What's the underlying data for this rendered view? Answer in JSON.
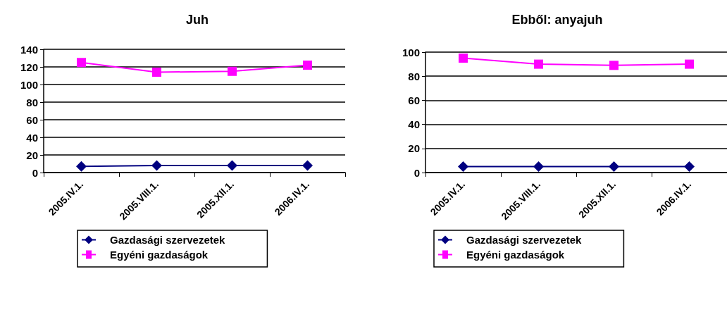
{
  "chart_data": [
    {
      "type": "line",
      "title": "Juh",
      "categories": [
        "2005.IV.1.",
        "2005.VIII.1.",
        "2005.XII.1.",
        "2006.IV.1."
      ],
      "series": [
        {
          "name": "Gazdasági szervezetek",
          "color": "#000080",
          "marker": "diamond",
          "values": [
            7,
            8,
            8,
            8
          ]
        },
        {
          "name": "Egyéni gazdaságok",
          "color": "#ff00ff",
          "marker": "square",
          "values": [
            125,
            114,
            115,
            122
          ]
        }
      ],
      "ylim": [
        0,
        140
      ],
      "yticks": [
        0,
        20,
        40,
        60,
        80,
        100,
        120,
        140
      ],
      "grid": "y",
      "legend": "bottom"
    },
    {
      "type": "line",
      "title": "Ebből: anyajuh",
      "categories": [
        "2005.IV.1.",
        "2005.VIII.1.",
        "2005.XII.1.",
        "2006.IV.1."
      ],
      "series": [
        {
          "name": "Gazdasági szervezetek",
          "color": "#000080",
          "marker": "diamond",
          "values": [
            5,
            5,
            5,
            5
          ]
        },
        {
          "name": "Egyéni gazdaságok",
          "color": "#ff00ff",
          "marker": "square",
          "values": [
            95,
            90,
            89,
            90
          ]
        }
      ],
      "ylim": [
        0,
        100
      ],
      "yticks": [
        0,
        20,
        40,
        60,
        80,
        100
      ],
      "grid": "y",
      "legend": "bottom"
    }
  ]
}
